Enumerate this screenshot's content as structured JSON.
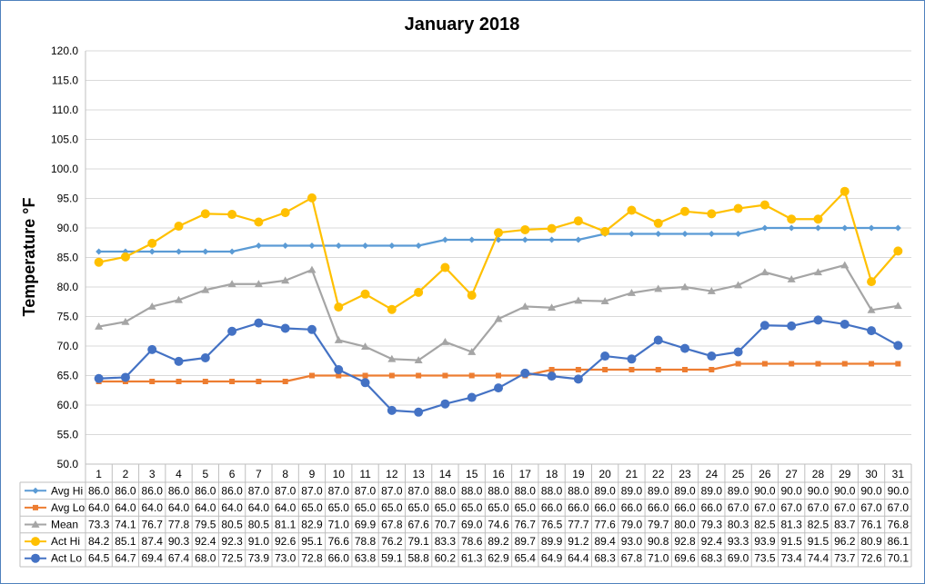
{
  "chart_data": {
    "type": "line",
    "title": "January 2018",
    "ylabel": "Temperature °F",
    "xlabel": "",
    "ylim": [
      50,
      120
    ],
    "ytick_step": 5,
    "grid": true,
    "legend": "data-table",
    "categories": [
      "1",
      "2",
      "3",
      "4",
      "5",
      "6",
      "7",
      "8",
      "9",
      "10",
      "11",
      "12",
      "13",
      "14",
      "15",
      "16",
      "17",
      "18",
      "19",
      "20",
      "21",
      "22",
      "23",
      "24",
      "25",
      "26",
      "27",
      "28",
      "29",
      "30",
      "31"
    ],
    "series": [
      {
        "name": "Avg Hi",
        "color": "#5b9bd5",
        "marker": "diamond",
        "values": [
          86.0,
          86.0,
          86.0,
          86.0,
          86.0,
          86.0,
          87.0,
          87.0,
          87.0,
          87.0,
          87.0,
          87.0,
          87.0,
          88.0,
          88.0,
          88.0,
          88.0,
          88.0,
          88.0,
          89.0,
          89.0,
          89.0,
          89.0,
          89.0,
          89.0,
          90.0,
          90.0,
          90.0,
          90.0,
          90.0,
          90.0
        ]
      },
      {
        "name": "Avg Lo",
        "color": "#ed7d31",
        "marker": "square",
        "values": [
          64.0,
          64.0,
          64.0,
          64.0,
          64.0,
          64.0,
          64.0,
          64.0,
          65.0,
          65.0,
          65.0,
          65.0,
          65.0,
          65.0,
          65.0,
          65.0,
          65.0,
          66.0,
          66.0,
          66.0,
          66.0,
          66.0,
          66.0,
          66.0,
          67.0,
          67.0,
          67.0,
          67.0,
          67.0,
          67.0,
          67.0
        ]
      },
      {
        "name": "Mean",
        "color": "#a5a5a5",
        "marker": "triangle",
        "values": [
          73.3,
          74.1,
          76.7,
          77.8,
          79.5,
          80.5,
          80.5,
          81.1,
          82.9,
          71.0,
          69.9,
          67.8,
          67.6,
          70.7,
          69.0,
          74.6,
          76.7,
          76.5,
          77.7,
          77.6,
          79.0,
          79.7,
          80.0,
          79.3,
          80.3,
          82.5,
          81.3,
          82.5,
          83.7,
          76.1,
          76.8
        ]
      },
      {
        "name": "Act Hi",
        "color": "#ffc000",
        "marker": "circle",
        "values": [
          84.2,
          85.1,
          87.4,
          90.3,
          92.4,
          92.3,
          91.0,
          92.6,
          95.1,
          76.6,
          78.8,
          76.2,
          79.1,
          83.3,
          78.6,
          89.2,
          89.7,
          89.9,
          91.2,
          89.4,
          93.0,
          90.8,
          92.8,
          92.4,
          93.3,
          93.9,
          91.5,
          91.5,
          96.2,
          80.9,
          86.1
        ]
      },
      {
        "name": "Act Lo",
        "color": "#4472c4",
        "marker": "circle",
        "values": [
          64.5,
          64.7,
          69.4,
          67.4,
          68.0,
          72.5,
          73.9,
          73.0,
          72.8,
          66.0,
          63.8,
          59.1,
          58.8,
          60.2,
          61.3,
          62.9,
          65.4,
          64.9,
          64.4,
          68.3,
          67.8,
          71.0,
          69.6,
          68.3,
          69.0,
          73.5,
          73.4,
          74.4,
          73.7,
          72.6,
          70.1
        ]
      }
    ]
  }
}
